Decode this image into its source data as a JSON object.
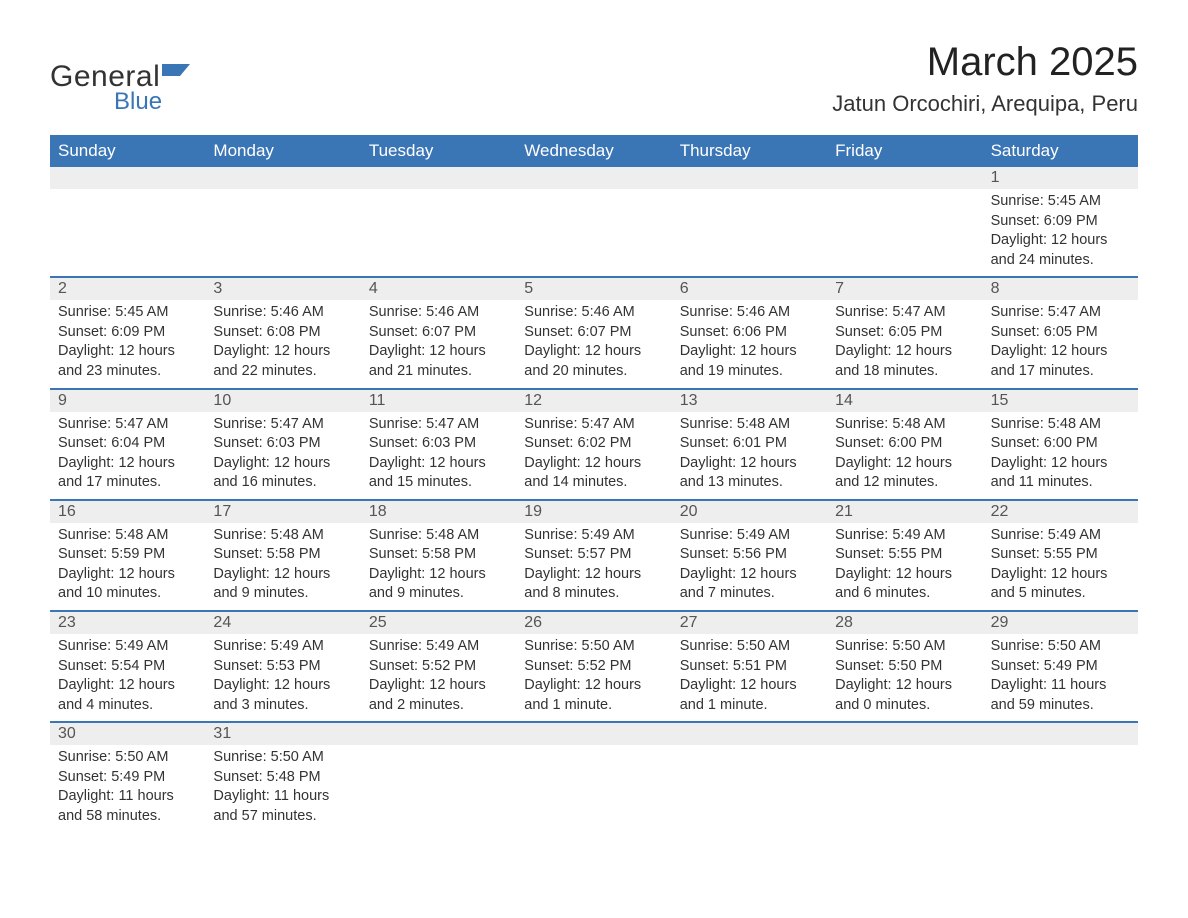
{
  "logo": {
    "general": "General",
    "blue": "Blue",
    "accent_color": "#3a75b5"
  },
  "title": "March 2025",
  "location": "Jatun Orcochiri, Arequipa, Peru",
  "colors": {
    "header_bg": "#3a75b5",
    "header_text": "#ffffff",
    "daynum_bg": "#eeeeee",
    "week_border": "#3a75b5",
    "body_text": "#333333"
  },
  "days_of_week": [
    "Sunday",
    "Monday",
    "Tuesday",
    "Wednesday",
    "Thursday",
    "Friday",
    "Saturday"
  ],
  "weeks": [
    [
      null,
      null,
      null,
      null,
      null,
      null,
      {
        "n": "1",
        "sunrise": "Sunrise: 5:45 AM",
        "sunset": "Sunset: 6:09 PM",
        "daylight": "Daylight: 12 hours and 24 minutes."
      }
    ],
    [
      {
        "n": "2",
        "sunrise": "Sunrise: 5:45 AM",
        "sunset": "Sunset: 6:09 PM",
        "daylight": "Daylight: 12 hours and 23 minutes."
      },
      {
        "n": "3",
        "sunrise": "Sunrise: 5:46 AM",
        "sunset": "Sunset: 6:08 PM",
        "daylight": "Daylight: 12 hours and 22 minutes."
      },
      {
        "n": "4",
        "sunrise": "Sunrise: 5:46 AM",
        "sunset": "Sunset: 6:07 PM",
        "daylight": "Daylight: 12 hours and 21 minutes."
      },
      {
        "n": "5",
        "sunrise": "Sunrise: 5:46 AM",
        "sunset": "Sunset: 6:07 PM",
        "daylight": "Daylight: 12 hours and 20 minutes."
      },
      {
        "n": "6",
        "sunrise": "Sunrise: 5:46 AM",
        "sunset": "Sunset: 6:06 PM",
        "daylight": "Daylight: 12 hours and 19 minutes."
      },
      {
        "n": "7",
        "sunrise": "Sunrise: 5:47 AM",
        "sunset": "Sunset: 6:05 PM",
        "daylight": "Daylight: 12 hours and 18 minutes."
      },
      {
        "n": "8",
        "sunrise": "Sunrise: 5:47 AM",
        "sunset": "Sunset: 6:05 PM",
        "daylight": "Daylight: 12 hours and 17 minutes."
      }
    ],
    [
      {
        "n": "9",
        "sunrise": "Sunrise: 5:47 AM",
        "sunset": "Sunset: 6:04 PM",
        "daylight": "Daylight: 12 hours and 17 minutes."
      },
      {
        "n": "10",
        "sunrise": "Sunrise: 5:47 AM",
        "sunset": "Sunset: 6:03 PM",
        "daylight": "Daylight: 12 hours and 16 minutes."
      },
      {
        "n": "11",
        "sunrise": "Sunrise: 5:47 AM",
        "sunset": "Sunset: 6:03 PM",
        "daylight": "Daylight: 12 hours and 15 minutes."
      },
      {
        "n": "12",
        "sunrise": "Sunrise: 5:47 AM",
        "sunset": "Sunset: 6:02 PM",
        "daylight": "Daylight: 12 hours and 14 minutes."
      },
      {
        "n": "13",
        "sunrise": "Sunrise: 5:48 AM",
        "sunset": "Sunset: 6:01 PM",
        "daylight": "Daylight: 12 hours and 13 minutes."
      },
      {
        "n": "14",
        "sunrise": "Sunrise: 5:48 AM",
        "sunset": "Sunset: 6:00 PM",
        "daylight": "Daylight: 12 hours and 12 minutes."
      },
      {
        "n": "15",
        "sunrise": "Sunrise: 5:48 AM",
        "sunset": "Sunset: 6:00 PM",
        "daylight": "Daylight: 12 hours and 11 minutes."
      }
    ],
    [
      {
        "n": "16",
        "sunrise": "Sunrise: 5:48 AM",
        "sunset": "Sunset: 5:59 PM",
        "daylight": "Daylight: 12 hours and 10 minutes."
      },
      {
        "n": "17",
        "sunrise": "Sunrise: 5:48 AM",
        "sunset": "Sunset: 5:58 PM",
        "daylight": "Daylight: 12 hours and 9 minutes."
      },
      {
        "n": "18",
        "sunrise": "Sunrise: 5:48 AM",
        "sunset": "Sunset: 5:58 PM",
        "daylight": "Daylight: 12 hours and 9 minutes."
      },
      {
        "n": "19",
        "sunrise": "Sunrise: 5:49 AM",
        "sunset": "Sunset: 5:57 PM",
        "daylight": "Daylight: 12 hours and 8 minutes."
      },
      {
        "n": "20",
        "sunrise": "Sunrise: 5:49 AM",
        "sunset": "Sunset: 5:56 PM",
        "daylight": "Daylight: 12 hours and 7 minutes."
      },
      {
        "n": "21",
        "sunrise": "Sunrise: 5:49 AM",
        "sunset": "Sunset: 5:55 PM",
        "daylight": "Daylight: 12 hours and 6 minutes."
      },
      {
        "n": "22",
        "sunrise": "Sunrise: 5:49 AM",
        "sunset": "Sunset: 5:55 PM",
        "daylight": "Daylight: 12 hours and 5 minutes."
      }
    ],
    [
      {
        "n": "23",
        "sunrise": "Sunrise: 5:49 AM",
        "sunset": "Sunset: 5:54 PM",
        "daylight": "Daylight: 12 hours and 4 minutes."
      },
      {
        "n": "24",
        "sunrise": "Sunrise: 5:49 AM",
        "sunset": "Sunset: 5:53 PM",
        "daylight": "Daylight: 12 hours and 3 minutes."
      },
      {
        "n": "25",
        "sunrise": "Sunrise: 5:49 AM",
        "sunset": "Sunset: 5:52 PM",
        "daylight": "Daylight: 12 hours and 2 minutes."
      },
      {
        "n": "26",
        "sunrise": "Sunrise: 5:50 AM",
        "sunset": "Sunset: 5:52 PM",
        "daylight": "Daylight: 12 hours and 1 minute."
      },
      {
        "n": "27",
        "sunrise": "Sunrise: 5:50 AM",
        "sunset": "Sunset: 5:51 PM",
        "daylight": "Daylight: 12 hours and 1 minute."
      },
      {
        "n": "28",
        "sunrise": "Sunrise: 5:50 AM",
        "sunset": "Sunset: 5:50 PM",
        "daylight": "Daylight: 12 hours and 0 minutes."
      },
      {
        "n": "29",
        "sunrise": "Sunrise: 5:50 AM",
        "sunset": "Sunset: 5:49 PM",
        "daylight": "Daylight: 11 hours and 59 minutes."
      }
    ],
    [
      {
        "n": "30",
        "sunrise": "Sunrise: 5:50 AM",
        "sunset": "Sunset: 5:49 PM",
        "daylight": "Daylight: 11 hours and 58 minutes."
      },
      {
        "n": "31",
        "sunrise": "Sunrise: 5:50 AM",
        "sunset": "Sunset: 5:48 PM",
        "daylight": "Daylight: 11 hours and 57 minutes."
      },
      null,
      null,
      null,
      null,
      null
    ]
  ]
}
